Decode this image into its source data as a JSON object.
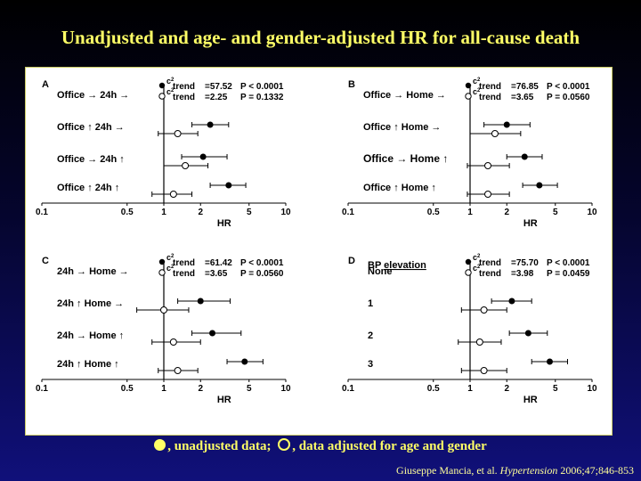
{
  "title": "Unadjusted and age- and gender-adjusted HR for all-cause death",
  "legend": {
    "filled_label": ", unadjusted data; ",
    "open_label": ", data adjusted for age and gender"
  },
  "citation": {
    "authors": "Giuseppe Mancia, et al. ",
    "journal": "Hypertension",
    "details": " 2006;47;846-853"
  },
  "colors": {
    "accent": "#ffff66",
    "marker": "#000000"
  },
  "chart_data": [
    {
      "type": "forest",
      "panel": "A",
      "xlabel": "HR",
      "xscale": "log",
      "xlim": [
        0.1,
        10
      ],
      "ticks": [
        "0.1",
        "0.5",
        "1",
        "2",
        "5",
        "10"
      ],
      "categories": [
        "Office → 24h →",
        "Office ↑ 24h →",
        "Office → 24h ↑",
        "Office ↑ 24h ↑"
      ],
      "stats": [
        {
          "label": "trend",
          "value": "=57.52",
          "p": "P < 0.0001"
        },
        {
          "label": "trend",
          "value": "=2.25",
          "p": "P = 0.1332"
        }
      ],
      "series": [
        {
          "name": "unadjusted",
          "points": [
            null,
            {
              "hr": 2.4,
              "lo": 1.7,
              "hi": 3.4
            },
            {
              "hr": 2.1,
              "lo": 1.4,
              "hi": 3.3
            },
            {
              "hr": 3.4,
              "lo": 2.4,
              "hi": 4.7
            }
          ]
        },
        {
          "name": "adjusted",
          "points": [
            null,
            {
              "hr": 1.3,
              "lo": 0.9,
              "hi": 1.9
            },
            {
              "hr": 1.5,
              "lo": 1.0,
              "hi": 2.3
            },
            {
              "hr": 1.2,
              "lo": 0.8,
              "hi": 1.7
            }
          ]
        }
      ]
    },
    {
      "type": "forest",
      "panel": "B",
      "xlabel": "HR",
      "xscale": "log",
      "xlim": [
        0.1,
        10
      ],
      "ticks": [
        "0.1",
        "0.5",
        "1",
        "2",
        "5",
        "10"
      ],
      "categories": [
        "Office → Home →",
        "Office ↑ Home →",
        "Office → Home ↑",
        "Office ↑ Home ↑"
      ],
      "stats": [
        {
          "label": "trend",
          "value": "=76.85",
          "p": "P < 0.0001"
        },
        {
          "label": "trend",
          "value": "=3.65",
          "p": "P = 0.0560"
        }
      ],
      "series": [
        {
          "name": "unadjusted",
          "points": [
            null,
            {
              "hr": 2.0,
              "lo": 1.3,
              "hi": 3.1
            },
            {
              "hr": 2.8,
              "lo": 2.0,
              "hi": 3.9
            },
            {
              "hr": 3.7,
              "lo": 2.7,
              "hi": 5.2
            }
          ]
        },
        {
          "name": "adjusted",
          "points": [
            null,
            {
              "hr": 1.6,
              "lo": 1.0,
              "hi": 2.6
            },
            {
              "hr": 1.4,
              "lo": 0.95,
              "hi": 2.1
            },
            {
              "hr": 1.4,
              "lo": 0.95,
              "hi": 2.1
            }
          ]
        }
      ]
    },
    {
      "type": "forest",
      "panel": "C",
      "xlabel": "HR",
      "xscale": "log",
      "xlim": [
        0.1,
        10
      ],
      "ticks": [
        "0.1",
        "0.5",
        "1",
        "2",
        "5",
        "10"
      ],
      "categories": [
        "24h → Home →",
        "24h ↑ Home →",
        "24h → Home ↑",
        "24h ↑ Home ↑"
      ],
      "stats": [
        {
          "label": "trend",
          "value": "=61.42",
          "p": "P < 0.0001"
        },
        {
          "label": "trend",
          "value": "=3.65",
          "p": "P = 0.0560"
        }
      ],
      "series": [
        {
          "name": "unadjusted",
          "points": [
            null,
            {
              "hr": 2.0,
              "lo": 1.3,
              "hi": 3.5
            },
            {
              "hr": 2.5,
              "lo": 1.7,
              "hi": 4.3
            },
            {
              "hr": 4.6,
              "lo": 3.3,
              "hi": 6.5
            }
          ]
        },
        {
          "name": "adjusted",
          "points": [
            null,
            {
              "hr": 1.0,
              "lo": 0.6,
              "hi": 1.6
            },
            {
              "hr": 1.2,
              "lo": 0.8,
              "hi": 2.0
            },
            {
              "hr": 1.3,
              "lo": 0.9,
              "hi": 1.9
            }
          ]
        }
      ]
    },
    {
      "type": "forest",
      "panel": "D",
      "xlabel": "HR",
      "xscale": "log",
      "xlim": [
        0.1,
        10
      ],
      "ticks": [
        "0.1",
        "0.5",
        "1",
        "2",
        "5",
        "10"
      ],
      "group_header": "BP ",
      "group_header_underlined": "elevation",
      "categories": [
        "None",
        "1",
        "2",
        "3"
      ],
      "stats": [
        {
          "label": "trend",
          "value": "=75.70",
          "p": "P < 0.0001"
        },
        {
          "label": "trend",
          "value": "=3.98",
          "p": "P = 0.0459"
        }
      ],
      "series": [
        {
          "name": "unadjusted",
          "points": [
            null,
            {
              "hr": 2.2,
              "lo": 1.5,
              "hi": 3.2
            },
            {
              "hr": 3.0,
              "lo": 2.1,
              "hi": 4.3
            },
            {
              "hr": 4.5,
              "lo": 3.2,
              "hi": 6.3
            }
          ]
        },
        {
          "name": "adjusted",
          "points": [
            null,
            {
              "hr": 1.3,
              "lo": 0.85,
              "hi": 2.0
            },
            {
              "hr": 1.2,
              "lo": 0.8,
              "hi": 1.8
            },
            {
              "hr": 1.3,
              "lo": 0.85,
              "hi": 2.0
            }
          ]
        }
      ]
    }
  ]
}
